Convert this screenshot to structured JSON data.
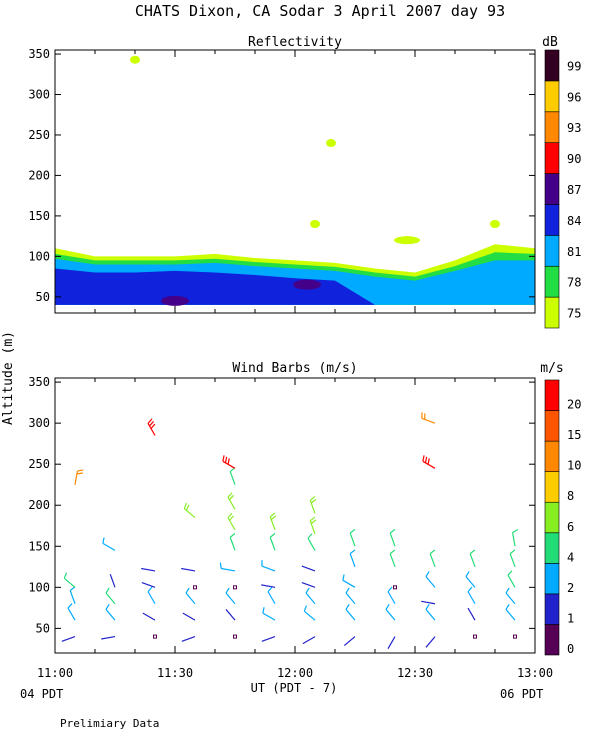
{
  "figure": {
    "title": "CHATS Dixon, CA  Sodar   3 April 2007   day  93",
    "shared_ylabel": "Altitude (m)",
    "xlabel": "UT  (PDT - 7)",
    "x_left_note": "04 PDT",
    "x_right_note": "06 PDT",
    "footer": "Prelimiary Data",
    "x_tick_labels": [
      "11:00",
      "11:30",
      "12:00",
      "12:30",
      "13:00"
    ]
  },
  "colors": {
    "dB": [
      "#ccff00",
      "#22dd44",
      "#00aaff",
      "#1122dd",
      "#440088",
      "#ff0000",
      "#ff8800",
      "#ffcc00",
      "#330022"
    ],
    "ms": [
      "#550055",
      "#2222cc",
      "#00aaff",
      "#22dd77",
      "#88ee22",
      "#ffcc00",
      "#ff8800",
      "#ff5500",
      "#ff0000"
    ]
  },
  "chart_data": [
    {
      "type": "heatmap",
      "title": "Reflectivity",
      "x_range": [
        "11:00",
        "13:00"
      ],
      "y_tick_labels": [
        "50",
        "100",
        "150",
        "200",
        "250",
        "300",
        "350"
      ],
      "ylim": [
        30,
        355
      ],
      "colorbar_unit": "dB",
      "colorbar_levels": [
        "75",
        "78",
        "81",
        "84",
        "87",
        "90",
        "93",
        "96",
        "99"
      ],
      "x_minutes": [
        0,
        10,
        20,
        30,
        40,
        50,
        60,
        70,
        80,
        90,
        100,
        110,
        120
      ],
      "layers": [
        {
          "level": "75",
          "top": [
            110,
            100,
            100,
            100,
            103,
            98,
            95,
            92,
            85,
            80,
            95,
            115,
            110
          ]
        },
        {
          "level": "78",
          "top": [
            103,
            95,
            95,
            95,
            97,
            93,
            90,
            87,
            80,
            75,
            88,
            105,
            103
          ]
        },
        {
          "level": "81",
          "top": [
            97,
            90,
            90,
            90,
            92,
            88,
            85,
            82,
            75,
            70,
            82,
            95,
            95
          ]
        },
        {
          "level": "84",
          "top": [
            85,
            80,
            80,
            82,
            80,
            77,
            73,
            70,
            0,
            0,
            0,
            0,
            0
          ]
        },
        {
          "level": "87",
          "top": [
            0,
            0,
            0,
            0,
            0,
            0,
            0,
            0,
            0,
            0,
            0,
            0,
            0
          ]
        }
      ],
      "blobs": [
        {
          "level": "75",
          "time": 20,
          "alt": 343
        },
        {
          "level": "75",
          "time": 69,
          "alt": 240
        },
        {
          "level": "75",
          "time": 65,
          "alt": 140
        },
        {
          "level": "75",
          "time": 88,
          "alt": 120
        },
        {
          "level": "75",
          "time": 110,
          "alt": 140
        },
        {
          "level": "87",
          "time": 30,
          "alt": 45
        },
        {
          "level": "87",
          "time": 63,
          "alt": 65
        }
      ]
    },
    {
      "type": "scatter",
      "title": "Wind Barbs (m/s)",
      "x_range": [
        "11:00",
        "13:00"
      ],
      "y_tick_labels": [
        "50",
        "100",
        "150",
        "200",
        "250",
        "300",
        "350"
      ],
      "ylim": [
        20,
        355
      ],
      "colorbar_unit": "m/s",
      "colorbar_levels": [
        "0",
        "1",
        "2",
        "4",
        "6",
        "8",
        "10",
        "15",
        "20"
      ],
      "barbs": [
        {
          "t": 5,
          "alt": 40,
          "dir": 250,
          "spd": 1
        },
        {
          "t": 5,
          "alt": 60,
          "dir": 330,
          "spd": 2
        },
        {
          "t": 5,
          "alt": 80,
          "dir": 340,
          "spd": 2
        },
        {
          "t": 5,
          "alt": 100,
          "dir": 310,
          "spd": 4
        },
        {
          "t": 5,
          "alt": 225,
          "dir": 10,
          "spd": 10
        },
        {
          "t": 15,
          "alt": 40,
          "dir": 260,
          "spd": 1
        },
        {
          "t": 15,
          "alt": 60,
          "dir": 320,
          "spd": 2
        },
        {
          "t": 15,
          "alt": 80,
          "dir": 320,
          "spd": 4
        },
        {
          "t": 15,
          "alt": 100,
          "dir": 340,
          "spd": 1
        },
        {
          "t": 15,
          "alt": 145,
          "dir": 300,
          "spd": 2
        },
        {
          "t": 25,
          "alt": 40,
          "dir": 0,
          "spd": 0
        },
        {
          "t": 25,
          "alt": 60,
          "dir": 300,
          "spd": 1
        },
        {
          "t": 25,
          "alt": 80,
          "dir": 330,
          "spd": 2
        },
        {
          "t": 25,
          "alt": 100,
          "dir": 290,
          "spd": 1
        },
        {
          "t": 25,
          "alt": 120,
          "dir": 280,
          "spd": 1
        },
        {
          "t": 25,
          "alt": 285,
          "dir": 330,
          "spd": 20
        },
        {
          "t": 35,
          "alt": 40,
          "dir": 250,
          "spd": 1
        },
        {
          "t": 35,
          "alt": 60,
          "dir": 300,
          "spd": 1
        },
        {
          "t": 35,
          "alt": 80,
          "dir": 320,
          "spd": 2
        },
        {
          "t": 35,
          "alt": 100,
          "dir": 0,
          "spd": 0
        },
        {
          "t": 35,
          "alt": 120,
          "dir": 280,
          "spd": 1
        },
        {
          "t": 35,
          "alt": 185,
          "dir": 310,
          "spd": 6
        },
        {
          "t": 45,
          "alt": 40,
          "dir": 0,
          "spd": 0
        },
        {
          "t": 45,
          "alt": 60,
          "dir": 320,
          "spd": 1
        },
        {
          "t": 45,
          "alt": 80,
          "dir": 320,
          "spd": 2
        },
        {
          "t": 45,
          "alt": 100,
          "dir": 0,
          "spd": 0
        },
        {
          "t": 45,
          "alt": 120,
          "dir": 280,
          "spd": 2
        },
        {
          "t": 45,
          "alt": 145,
          "dir": 340,
          "spd": 4
        },
        {
          "t": 45,
          "alt": 170,
          "dir": 330,
          "spd": 6
        },
        {
          "t": 45,
          "alt": 195,
          "dir": 330,
          "spd": 6
        },
        {
          "t": 45,
          "alt": 225,
          "dir": 340,
          "spd": 4
        },
        {
          "t": 45,
          "alt": 245,
          "dir": 300,
          "spd": 20
        },
        {
          "t": 55,
          "alt": 40,
          "dir": 250,
          "spd": 1
        },
        {
          "t": 55,
          "alt": 60,
          "dir": 300,
          "spd": 2
        },
        {
          "t": 55,
          "alt": 80,
          "dir": 330,
          "spd": 2
        },
        {
          "t": 55,
          "alt": 100,
          "dir": 280,
          "spd": 1
        },
        {
          "t": 55,
          "alt": 120,
          "dir": 290,
          "spd": 2
        },
        {
          "t": 55,
          "alt": 145,
          "dir": 340,
          "spd": 4
        },
        {
          "t": 55,
          "alt": 170,
          "dir": 340,
          "spd": 6
        },
        {
          "t": 65,
          "alt": 40,
          "dir": 240,
          "spd": 1
        },
        {
          "t": 65,
          "alt": 60,
          "dir": 310,
          "spd": 2
        },
        {
          "t": 65,
          "alt": 80,
          "dir": 320,
          "spd": 2
        },
        {
          "t": 65,
          "alt": 100,
          "dir": 290,
          "spd": 1
        },
        {
          "t": 65,
          "alt": 120,
          "dir": 290,
          "spd": 1
        },
        {
          "t": 65,
          "alt": 145,
          "dir": 330,
          "spd": 4
        },
        {
          "t": 65,
          "alt": 165,
          "dir": 340,
          "spd": 6
        },
        {
          "t": 65,
          "alt": 190,
          "dir": 340,
          "spd": 6
        },
        {
          "t": 75,
          "alt": 40,
          "dir": 230,
          "spd": 1
        },
        {
          "t": 75,
          "alt": 60,
          "dir": 320,
          "spd": 2
        },
        {
          "t": 75,
          "alt": 80,
          "dir": 320,
          "spd": 2
        },
        {
          "t": 75,
          "alt": 100,
          "dir": 300,
          "spd": 2
        },
        {
          "t": 75,
          "alt": 125,
          "dir": 340,
          "spd": 2
        },
        {
          "t": 75,
          "alt": 150,
          "dir": 340,
          "spd": 4
        },
        {
          "t": 85,
          "alt": 40,
          "dir": 210,
          "spd": 1
        },
        {
          "t": 85,
          "alt": 60,
          "dir": 320,
          "spd": 2
        },
        {
          "t": 85,
          "alt": 80,
          "dir": 330,
          "spd": 2
        },
        {
          "t": 85,
          "alt": 100,
          "dir": 0,
          "spd": 0
        },
        {
          "t": 85,
          "alt": 125,
          "dir": 340,
          "spd": 4
        },
        {
          "t": 85,
          "alt": 150,
          "dir": 340,
          "spd": 4
        },
        {
          "t": 95,
          "alt": 40,
          "dir": 220,
          "spd": 1
        },
        {
          "t": 95,
          "alt": 60,
          "dir": 320,
          "spd": 2
        },
        {
          "t": 95,
          "alt": 80,
          "dir": 280,
          "spd": 1
        },
        {
          "t": 95,
          "alt": 100,
          "dir": 320,
          "spd": 2
        },
        {
          "t": 95,
          "alt": 125,
          "dir": 340,
          "spd": 4
        },
        {
          "t": 95,
          "alt": 245,
          "dir": 300,
          "spd": 20
        },
        {
          "t": 95,
          "alt": 300,
          "dir": 290,
          "spd": 10
        },
        {
          "t": 105,
          "alt": 40,
          "dir": 0,
          "spd": 0
        },
        {
          "t": 105,
          "alt": 60,
          "dir": 330,
          "spd": 1
        },
        {
          "t": 105,
          "alt": 80,
          "dir": 330,
          "spd": 2
        },
        {
          "t": 105,
          "alt": 100,
          "dir": 320,
          "spd": 2
        },
        {
          "t": 105,
          "alt": 125,
          "dir": 340,
          "spd": 4
        },
        {
          "t": 115,
          "alt": 40,
          "dir": 0,
          "spd": 0
        },
        {
          "t": 115,
          "alt": 60,
          "dir": 320,
          "spd": 2
        },
        {
          "t": 115,
          "alt": 80,
          "dir": 320,
          "spd": 2
        },
        {
          "t": 115,
          "alt": 100,
          "dir": 330,
          "spd": 4
        },
        {
          "t": 115,
          "alt": 125,
          "dir": 340,
          "spd": 4
        },
        {
          "t": 115,
          "alt": 150,
          "dir": 350,
          "spd": 4
        }
      ]
    }
  ]
}
